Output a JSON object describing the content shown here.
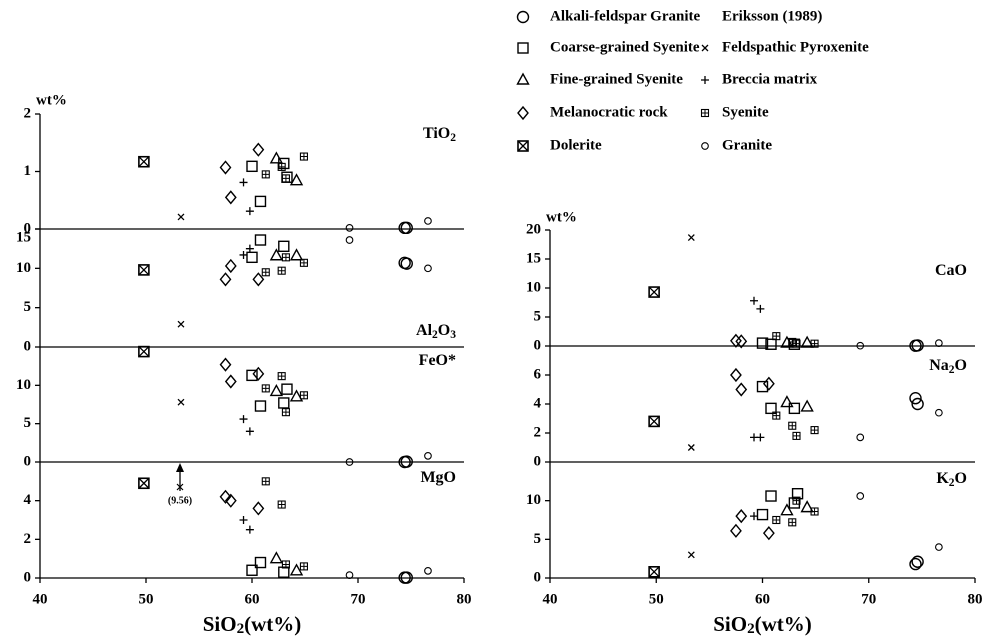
{
  "chart_data": {
    "type": "scatter",
    "x_label": "SiO2(wt%)",
    "y_unit": "wt%",
    "xlim": [
      40,
      80
    ],
    "xticks": [
      40,
      50,
      60,
      70,
      80
    ],
    "legend_title": "Eriksson (1989)",
    "annotation": "(9.56)",
    "panels": [
      {
        "label": "TiO2",
        "ylim": [
          0,
          2
        ],
        "yticks": [
          0,
          1,
          2
        ]
      },
      {
        "label": "Al2O3",
        "ylim": [
          0,
          15
        ],
        "yticks": [
          0,
          5,
          10,
          15
        ]
      },
      {
        "label": "FeO*",
        "ylim": [
          0,
          15
        ],
        "yticks": [
          0,
          5,
          10
        ]
      },
      {
        "label": "MgO",
        "ylim": [
          0,
          6
        ],
        "yticks": [
          0,
          2,
          4
        ]
      },
      {
        "label": "CaO",
        "ylim": [
          0,
          20
        ],
        "yticks": [
          0,
          5,
          10,
          15,
          20
        ]
      },
      {
        "label": "Na2O",
        "ylim": [
          0,
          8
        ],
        "yticks": [
          0,
          2,
          4,
          6
        ]
      },
      {
        "label": "K2O",
        "ylim": [
          0,
          15
        ],
        "yticks": [
          0,
          5,
          10
        ]
      }
    ],
    "series": [
      {
        "name": "Alkali-feldspar Granite",
        "marker": "circle-large",
        "x": [
          74.4,
          74.6
        ],
        "values": [
          [
            0.02,
            0.02
          ],
          [
            10.7,
            10.6
          ],
          [
            0.0,
            0.05
          ],
          [
            0.02,
            0.02
          ],
          [
            0.05,
            0.1
          ],
          [
            4.4,
            4.0
          ],
          [
            1.8,
            2.1
          ]
        ]
      },
      {
        "name": "Coarse-grained Syenite",
        "marker": "square",
        "x": [
          60.0,
          60.8,
          63.0,
          63.3
        ],
        "values": [
          [
            1.09,
            0.48,
            1.14,
            0.9
          ],
          [
            11.4,
            13.6,
            12.8,
            null
          ],
          [
            11.3,
            7.3,
            7.7,
            9.5
          ],
          [
            0.4,
            0.8,
            0.3,
            null
          ],
          [
            0.5,
            0.3,
            0.3,
            null
          ],
          [
            5.2,
            3.7,
            3.7,
            null
          ],
          [
            8.2,
            10.6,
            9.7,
            10.9
          ]
        ]
      },
      {
        "name": "Fine-grained Syenite",
        "marker": "triangle",
        "x": [
          62.3,
          64.2
        ],
        "values": [
          [
            1.22,
            0.84
          ],
          [
            11.6,
            11.6
          ],
          [
            9.2,
            8.5
          ],
          [
            1.0,
            0.37
          ],
          [
            0.5,
            0.5
          ],
          [
            4.1,
            3.8
          ],
          [
            8.7,
            9.1
          ]
        ]
      },
      {
        "name": "Melanocratic rock",
        "marker": "diamond",
        "x": [
          57.5,
          58.0,
          60.6
        ],
        "values": [
          [
            1.07,
            0.55,
            1.38
          ],
          [
            8.6,
            10.3,
            8.6
          ],
          [
            12.7,
            10.5,
            11.5
          ],
          [
            4.2,
            4.0,
            3.6
          ],
          [
            0.9,
            0.8,
            null
          ],
          [
            6.0,
            5.0,
            5.4
          ],
          [
            6.1,
            8.0,
            5.8
          ]
        ]
      },
      {
        "name": "Dolerite",
        "marker": "boxed-x",
        "x": [
          49.8
        ],
        "values": [
          [
            1.17
          ],
          [
            9.8
          ],
          [
            14.4
          ],
          [
            4.9
          ],
          [
            9.3
          ],
          [
            2.8
          ],
          [
            0.8
          ]
        ]
      },
      {
        "name": "Feldspathic Pyroxenite",
        "marker": "cross",
        "x": [
          53.3
        ],
        "values": [
          [
            0.21
          ],
          [
            2.9
          ],
          [
            7.8
          ],
          [
            null
          ],
          [
            18.7
          ],
          [
            1.0
          ],
          [
            3.0
          ]
        ]
      },
      {
        "name": "Breccia matrix",
        "marker": "plus",
        "x": [
          59.2,
          59.8
        ],
        "values": [
          [
            0.81,
            0.31
          ],
          [
            11.7,
            12.5
          ],
          [
            5.6,
            4.0
          ],
          [
            3.0,
            2.5
          ],
          [
            7.8,
            6.4
          ],
          [
            1.7,
            1.7
          ],
          [
            8.0,
            null
          ]
        ]
      },
      {
        "name": "Syenite",
        "marker": "dotted-square",
        "x": [
          61.3,
          62.8,
          63.2,
          64.9
        ],
        "values": [
          [
            0.95,
            1.08,
            0.88,
            1.26
          ],
          [
            9.5,
            9.7,
            11.4,
            10.7
          ],
          [
            9.6,
            11.2,
            6.5,
            8.7
          ],
          [
            5.0,
            3.8,
            0.7,
            0.6
          ],
          [
            1.7,
            0.7,
            0.4,
            0.4
          ],
          [
            3.2,
            2.5,
            1.8,
            2.2
          ],
          [
            7.5,
            7.2,
            10.0,
            8.6
          ]
        ]
      },
      {
        "name": "Granite",
        "marker": "circle-small",
        "x": [
          69.2,
          76.6
        ],
        "values": [
          [
            0.02,
            0.14
          ],
          [
            13.6,
            10.0
          ],
          [
            0.0,
            0.8
          ],
          [
            0.15,
            0.37
          ],
          [
            0.05,
            0.5
          ],
          [
            1.7,
            3.4
          ],
          [
            10.6,
            4.0
          ]
        ]
      }
    ]
  }
}
